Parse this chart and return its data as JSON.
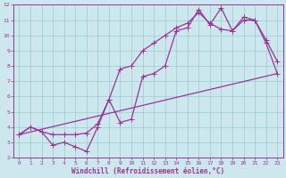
{
  "xlabel": "Windchill (Refroidissement éolien,°C)",
  "xlim": [
    -0.5,
    23.5
  ],
  "ylim": [
    2,
    12
  ],
  "xticks": [
    0,
    1,
    2,
    3,
    4,
    5,
    6,
    7,
    8,
    9,
    10,
    11,
    12,
    13,
    14,
    15,
    16,
    17,
    18,
    19,
    20,
    21,
    22,
    23
  ],
  "yticks": [
    2,
    3,
    4,
    5,
    6,
    7,
    8,
    9,
    10,
    11,
    12
  ],
  "bg_color": "#cce8ee",
  "line_color": "#993399",
  "grid_color": "#99cccc",
  "line1_x": [
    0,
    1,
    2,
    3,
    4,
    5,
    6,
    7,
    8,
    9,
    10,
    11,
    12,
    13,
    14,
    15,
    16,
    17,
    18,
    19,
    20,
    21,
    22,
    23
  ],
  "line1_y": [
    3.5,
    4.0,
    3.7,
    2.8,
    3.0,
    2.7,
    2.4,
    4.0,
    5.8,
    4.3,
    4.5,
    7.3,
    7.5,
    8.0,
    10.3,
    10.5,
    11.7,
    10.7,
    11.8,
    10.3,
    11.2,
    11.0,
    9.7,
    8.3
  ],
  "line2_x": [
    0,
    1,
    2,
    3,
    4,
    5,
    6,
    7,
    8,
    9,
    10,
    11,
    12,
    13,
    14,
    15,
    16,
    17,
    18,
    19,
    20,
    21,
    22,
    23
  ],
  "line2_y": [
    3.5,
    4.0,
    3.7,
    3.5,
    3.5,
    3.5,
    3.6,
    4.2,
    5.8,
    7.8,
    8.0,
    9.0,
    9.5,
    10.0,
    10.5,
    10.8,
    11.5,
    10.8,
    10.4,
    10.3,
    11.0,
    11.0,
    9.5,
    7.5
  ],
  "line3_x": [
    0,
    23
  ],
  "line3_y": [
    3.5,
    7.5
  ]
}
